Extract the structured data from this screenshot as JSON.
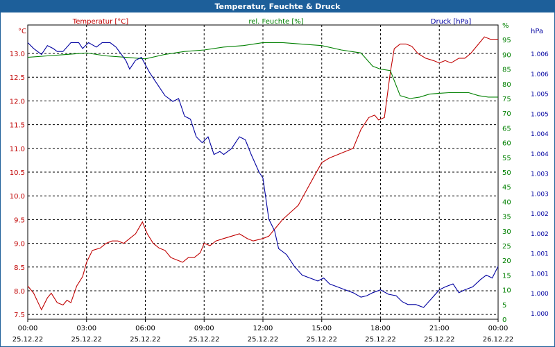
{
  "window": {
    "title": "Temperatur, Feuchte & Druck"
  },
  "colors": {
    "temperature": "#c00000",
    "humidity": "#008000",
    "pressure": "#0000a0",
    "titlebar": "#1d5f9a"
  },
  "chart_data": {
    "type": "line",
    "title": "Temperatur, Feuchte & Druck",
    "grid": true,
    "x_ticks": [
      {
        "time": "00:00",
        "date": "25.12.22"
      },
      {
        "time": "03:00",
        "date": "25.12.22"
      },
      {
        "time": "06:00",
        "date": "25.12.22"
      },
      {
        "time": "09:00",
        "date": "25.12.22"
      },
      {
        "time": "12:00",
        "date": "25.12.22"
      },
      {
        "time": "15:00",
        "date": "25.12.22"
      },
      {
        "time": "18:00",
        "date": "25.12.22"
      },
      {
        "time": "21:00",
        "date": "25.12.22"
      },
      {
        "time": "00:00",
        "date": "26.12.22"
      }
    ],
    "x_range_hours": [
      0,
      24
    ],
    "axes": {
      "left": {
        "label": "Temperatur [°C]",
        "unit": "°C",
        "range": [
          7.4,
          13.6
        ],
        "ticks": [
          "7.5",
          "8.0",
          "8.5",
          "9.0",
          "9.5",
          "10.0",
          "10.5",
          "11.0",
          "11.5",
          "12.0",
          "12.5",
          "13.0"
        ]
      },
      "mid": {
        "label": "rel. Feuchte [%]",
        "unit": "%",
        "range": [
          0,
          100
        ],
        "ticks": [
          "0",
          "5",
          "10",
          "15",
          "20",
          "25",
          "30",
          "35",
          "40",
          "45",
          "50",
          "55",
          "60",
          "65",
          "70",
          "75",
          "80",
          "85",
          "90",
          "95",
          "%"
        ]
      },
      "right": {
        "label": "Druck [hPa]",
        "unit": "hPa",
        "ticks": [
          "1.000",
          "1.000",
          "1.001",
          "1.001",
          "1.002",
          "1.002",
          "1.003",
          "1.003",
          "1.004",
          "1.004",
          "1.005",
          "1.005",
          "1.006",
          "1.006"
        ]
      }
    },
    "series": [
      {
        "name": "Temperatur [°C]",
        "axis": "left",
        "points": [
          [
            0,
            8.1
          ],
          [
            0.3,
            7.95
          ],
          [
            0.7,
            7.6
          ],
          [
            1.0,
            7.85
          ],
          [
            1.2,
            7.95
          ],
          [
            1.5,
            7.75
          ],
          [
            1.8,
            7.7
          ],
          [
            2.0,
            7.8
          ],
          [
            2.2,
            7.75
          ],
          [
            2.5,
            8.1
          ],
          [
            2.8,
            8.3
          ],
          [
            3.0,
            8.6
          ],
          [
            3.3,
            8.85
          ],
          [
            3.7,
            8.9
          ],
          [
            4.0,
            9.0
          ],
          [
            4.3,
            9.05
          ],
          [
            4.6,
            9.05
          ],
          [
            4.9,
            9.0
          ],
          [
            5.2,
            9.1
          ],
          [
            5.5,
            9.2
          ],
          [
            5.85,
            9.45
          ],
          [
            6.1,
            9.2
          ],
          [
            6.4,
            9.0
          ],
          [
            6.7,
            8.9
          ],
          [
            7.0,
            8.85
          ],
          [
            7.3,
            8.7
          ],
          [
            7.6,
            8.65
          ],
          [
            7.9,
            8.6
          ],
          [
            8.2,
            8.7
          ],
          [
            8.5,
            8.7
          ],
          [
            8.8,
            8.8
          ],
          [
            9.0,
            9.0
          ],
          [
            9.3,
            8.95
          ],
          [
            9.6,
            9.05
          ],
          [
            10.0,
            9.1
          ],
          [
            10.4,
            9.15
          ],
          [
            10.8,
            9.2
          ],
          [
            11.2,
            9.1
          ],
          [
            11.5,
            9.05
          ],
          [
            12.0,
            9.1
          ],
          [
            12.3,
            9.15
          ],
          [
            12.6,
            9.3
          ],
          [
            13.0,
            9.5
          ],
          [
            13.4,
            9.65
          ],
          [
            13.8,
            9.8
          ],
          [
            14.2,
            10.1
          ],
          [
            14.6,
            10.4
          ],
          [
            15.0,
            10.7
          ],
          [
            15.4,
            10.8
          ],
          [
            15.7,
            10.85
          ],
          [
            16.0,
            10.9
          ],
          [
            16.3,
            10.95
          ],
          [
            16.6,
            11.0
          ],
          [
            17.0,
            11.4
          ],
          [
            17.4,
            11.65
          ],
          [
            17.7,
            11.7
          ],
          [
            17.9,
            11.6
          ],
          [
            18.2,
            11.65
          ],
          [
            18.5,
            12.6
          ],
          [
            18.7,
            13.1
          ],
          [
            19.0,
            13.2
          ],
          [
            19.3,
            13.2
          ],
          [
            19.6,
            13.15
          ],
          [
            19.9,
            13.0
          ],
          [
            20.3,
            12.9
          ],
          [
            20.7,
            12.85
          ],
          [
            21.0,
            12.8
          ],
          [
            21.3,
            12.85
          ],
          [
            21.6,
            12.8
          ],
          [
            22.0,
            12.9
          ],
          [
            22.3,
            12.9
          ],
          [
            22.6,
            13.0
          ],
          [
            23.0,
            13.2
          ],
          [
            23.3,
            13.35
          ],
          [
            23.6,
            13.3
          ],
          [
            24,
            13.3
          ]
        ]
      },
      {
        "name": "rel. Feuchte [%]",
        "axis": "mid",
        "points": [
          [
            0,
            89
          ],
          [
            1,
            89.5
          ],
          [
            2,
            90
          ],
          [
            3,
            90.5
          ],
          [
            4,
            89.5
          ],
          [
            5,
            89
          ],
          [
            6,
            88.5
          ],
          [
            7,
            90
          ],
          [
            8,
            91
          ],
          [
            9,
            91.5
          ],
          [
            10,
            92.5
          ],
          [
            11,
            93
          ],
          [
            12,
            94
          ],
          [
            13,
            94
          ],
          [
            14,
            93.5
          ],
          [
            15,
            93
          ],
          [
            16,
            91.5
          ],
          [
            17,
            90.5
          ],
          [
            17.6,
            86
          ],
          [
            18,
            85
          ],
          [
            18.5,
            84.5
          ],
          [
            19,
            76
          ],
          [
            19.5,
            75
          ],
          [
            20,
            75.5
          ],
          [
            20.5,
            76.5
          ],
          [
            21,
            76.8
          ],
          [
            21.5,
            77
          ],
          [
            22,
            77
          ],
          [
            22.5,
            77
          ],
          [
            23,
            76
          ],
          [
            23.5,
            75.5
          ],
          [
            24,
            75.5
          ]
        ]
      },
      {
        "name": "Druck [hPa]",
        "axis": "right",
        "points": [
          [
            0,
            94
          ],
          [
            0.3,
            92
          ],
          [
            0.7,
            90
          ],
          [
            1.0,
            93
          ],
          [
            1.3,
            92
          ],
          [
            1.5,
            91
          ],
          [
            1.8,
            91
          ],
          [
            2.2,
            94
          ],
          [
            2.6,
            94
          ],
          [
            2.8,
            92
          ],
          [
            3.1,
            94
          ],
          [
            3.5,
            92.5
          ],
          [
            3.8,
            94
          ],
          [
            4.2,
            94
          ],
          [
            4.5,
            92.5
          ],
          [
            5.0,
            88
          ],
          [
            5.2,
            85
          ],
          [
            5.5,
            88
          ],
          [
            5.8,
            89
          ],
          [
            6.2,
            84
          ],
          [
            6.5,
            81
          ],
          [
            7.0,
            76
          ],
          [
            7.4,
            74
          ],
          [
            7.7,
            75
          ],
          [
            8.0,
            69
          ],
          [
            8.3,
            68
          ],
          [
            8.6,
            62
          ],
          [
            8.9,
            60
          ],
          [
            9.2,
            62
          ],
          [
            9.5,
            56
          ],
          [
            9.8,
            57
          ],
          [
            10.0,
            56
          ],
          [
            10.4,
            58
          ],
          [
            10.8,
            62
          ],
          [
            11.1,
            61
          ],
          [
            11.4,
            56
          ],
          [
            11.8,
            50
          ],
          [
            12.0,
            48
          ],
          [
            12.3,
            34
          ],
          [
            12.6,
            30
          ],
          [
            12.8,
            24
          ],
          [
            13.2,
            22
          ],
          [
            13.6,
            18
          ],
          [
            14.0,
            15
          ],
          [
            14.4,
            14
          ],
          [
            14.8,
            13
          ],
          [
            15.1,
            14
          ],
          [
            15.4,
            12
          ],
          [
            15.8,
            11
          ],
          [
            16.2,
            10
          ],
          [
            16.6,
            9
          ],
          [
            17.0,
            7.5
          ],
          [
            17.3,
            8
          ],
          [
            17.6,
            9
          ],
          [
            18.0,
            10
          ],
          [
            18.4,
            8.5
          ],
          [
            18.8,
            8
          ],
          [
            19.1,
            6
          ],
          [
            19.4,
            5
          ],
          [
            19.8,
            5
          ],
          [
            20.2,
            4
          ],
          [
            20.6,
            7
          ],
          [
            21.0,
            10
          ],
          [
            21.3,
            11
          ],
          [
            21.7,
            12
          ],
          [
            22.0,
            9
          ],
          [
            22.3,
            10
          ],
          [
            22.7,
            11
          ],
          [
            23.1,
            13.5
          ],
          [
            23.4,
            15
          ],
          [
            23.7,
            14
          ],
          [
            24,
            18
          ]
        ]
      }
    ]
  }
}
